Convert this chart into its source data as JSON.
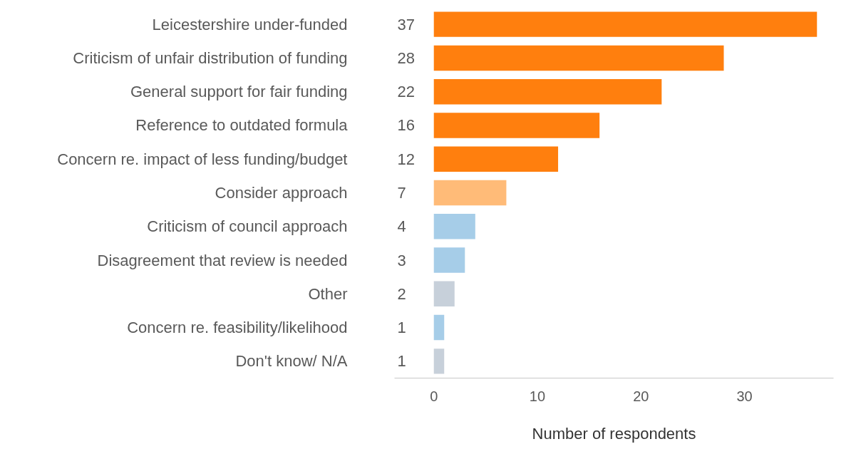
{
  "chart_data": {
    "type": "bar",
    "orientation": "horizontal",
    "xlabel": "Number of respondents",
    "categories": [
      "Leicestershire under-funded",
      "Criticism of unfair distribution of funding",
      "General support for fair funding",
      "Reference to outdated formula",
      "Concern re. impact of less funding/budget",
      "Consider approach",
      "Criticism of council approach",
      "Disagreement that review is needed",
      "Other",
      "Concern re. feasibility/likelihood",
      "Don't know/ N/A"
    ],
    "values": [
      37,
      28,
      22,
      16,
      12,
      7,
      4,
      3,
      2,
      1,
      1
    ],
    "colors": [
      "#ff7f0e",
      "#ff7f0e",
      "#ff7f0e",
      "#ff7f0e",
      "#ff7f0e",
      "#ffbb78",
      "#a6cde8",
      "#a6cde8",
      "#c7d0da",
      "#a6cde8",
      "#c7d0da"
    ],
    "xlim": [
      -3.8,
      38.6
    ],
    "xticks": [
      0,
      10,
      20,
      30
    ],
    "data_labels": true,
    "grid": false
  }
}
